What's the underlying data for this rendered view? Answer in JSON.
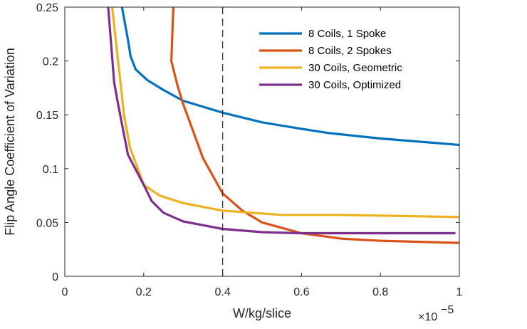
{
  "chart_data": {
    "type": "line",
    "title": "",
    "xlabel": "W/kg/slice",
    "ylabel": "Flip Angle Coefficient of Variation",
    "x_exponent_base": "×10",
    "x_exponent_power": "−5",
    "xlim": [
      0,
      1
    ],
    "ylim": [
      0,
      0.25
    ],
    "xticks": [
      0,
      0.2,
      0.4,
      0.6,
      0.8,
      1
    ],
    "xtick_labels": [
      "0",
      "0.2",
      "0.4",
      "0.6",
      "0.8",
      "1"
    ],
    "yticks": [
      0,
      0.05,
      0.1,
      0.15,
      0.2,
      0.25
    ],
    "ytick_labels": [
      "0",
      "0.05",
      "0.1",
      "0.15",
      "0.2",
      "0.25"
    ],
    "grid": false,
    "legend_position": "top-right",
    "vline": {
      "x": 0.4,
      "style": "dashed",
      "color": "#333333"
    },
    "series": [
      {
        "name": "8 Coils, 1 Spoke",
        "color": "#0072BD",
        "points": [
          [
            0.145,
            0.25
          ],
          [
            0.16,
            0.22
          ],
          [
            0.167,
            0.204
          ],
          [
            0.18,
            0.192
          ],
          [
            0.21,
            0.182
          ],
          [
            0.25,
            0.173
          ],
          [
            0.3,
            0.163
          ],
          [
            0.4,
            0.152
          ],
          [
            0.5,
            0.143
          ],
          [
            0.6,
            0.137
          ],
          [
            0.67,
            0.133
          ],
          [
            0.8,
            0.128
          ],
          [
            1.0,
            0.122
          ]
        ]
      },
      {
        "name": "8 Coils, 2 Spokes",
        "color": "#D95319",
        "points": [
          [
            0.275,
            0.25
          ],
          [
            0.27,
            0.2
          ],
          [
            0.285,
            0.178
          ],
          [
            0.3,
            0.16
          ],
          [
            0.32,
            0.14
          ],
          [
            0.35,
            0.11
          ],
          [
            0.4,
            0.077
          ],
          [
            0.45,
            0.061
          ],
          [
            0.5,
            0.05
          ],
          [
            0.6,
            0.04
          ],
          [
            0.7,
            0.035
          ],
          [
            0.8,
            0.033
          ],
          [
            1.0,
            0.031
          ]
        ]
      },
      {
        "name": "30 Coils, Geometric",
        "color": "#EDB120",
        "points": [
          [
            0.12,
            0.25
          ],
          [
            0.135,
            0.2
          ],
          [
            0.15,
            0.15
          ],
          [
            0.165,
            0.12
          ],
          [
            0.2,
            0.085
          ],
          [
            0.24,
            0.075
          ],
          [
            0.3,
            0.068
          ],
          [
            0.4,
            0.061
          ],
          [
            0.55,
            0.057
          ],
          [
            0.7,
            0.057
          ],
          [
            1.0,
            0.055
          ]
        ]
      },
      {
        "name": "30 Coils, Optimized",
        "color": "#7E2F8E",
        "points": [
          [
            0.11,
            0.25
          ],
          [
            0.125,
            0.18
          ],
          [
            0.135,
            0.16
          ],
          [
            0.16,
            0.113
          ],
          [
            0.2,
            0.085
          ],
          [
            0.22,
            0.07
          ],
          [
            0.25,
            0.059
          ],
          [
            0.3,
            0.051
          ],
          [
            0.4,
            0.044
          ],
          [
            0.5,
            0.041
          ],
          [
            0.6,
            0.04
          ],
          [
            0.8,
            0.04
          ],
          [
            0.99,
            0.04
          ]
        ]
      }
    ]
  }
}
